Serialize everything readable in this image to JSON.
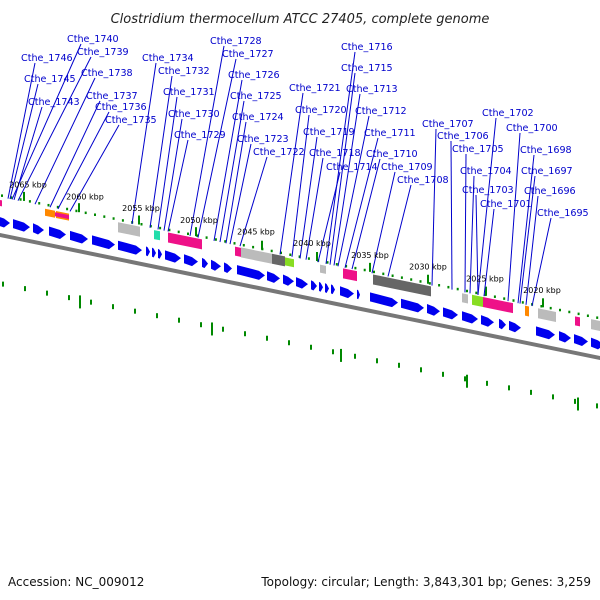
{
  "title": "Clostridium thermocellum ATCC 27405, complete genome",
  "accession": "Accession: NC_009012",
  "topology": "Topology: circular; Length: 3,843,301 bp; Genes: 3,259",
  "colors": {
    "gene_forward": "#0000ee",
    "backbone": "#777777",
    "leader": "#0000cc",
    "tick": "#008800",
    "gray_feature": "#bbbbbb",
    "dark_feature": "#666666",
    "pink_feature": "#ee1188",
    "orange_feature": "#ff8800",
    "green_feature": "#88dd22",
    "teal_feature": "#22ddaa"
  },
  "scale_labels": [
    "2065 kbp",
    "2060 kbp",
    "2055 kbp",
    "2050 kbp",
    "2045 kbp",
    "2040 kbp",
    "2035 kbp",
    "2030 kbp",
    "2025 kbp",
    "2020 kbp"
  ],
  "gene_labels": [
    "Cthe_1740",
    "Cthe_1739",
    "Cthe_1746",
    "Cthe_1738",
    "Cthe_1745",
    "Cthe_1743",
    "Cthe_1737",
    "Cthe_1736",
    "Cthe_1735",
    "Cthe_1734",
    "Cthe_1732",
    "Cthe_1731",
    "Cthe_1730",
    "Cthe_1729",
    "Cthe_1728",
    "Cthe_1727",
    "Cthe_1726",
    "Cthe_1725",
    "Cthe_1724",
    "Cthe_1723",
    "Cthe_1722",
    "Cthe_1721",
    "Cthe_1720",
    "Cthe_1719",
    "Cthe_1718",
    "Cthe_1714",
    "Cthe_1716",
    "Cthe_1715",
    "Cthe_1713",
    "Cthe_1712",
    "Cthe_1711",
    "Cthe_1710",
    "Cthe_1709",
    "Cthe_1708",
    "Cthe_1707",
    "Cthe_1706",
    "Cthe_1705",
    "Cthe_1704",
    "Cthe_1703",
    "Cthe_1701",
    "Cthe_1702",
    "Cthe_1700",
    "Cthe_1698",
    "Cthe_1697",
    "Cthe_1696",
    "Cthe_1695"
  ]
}
